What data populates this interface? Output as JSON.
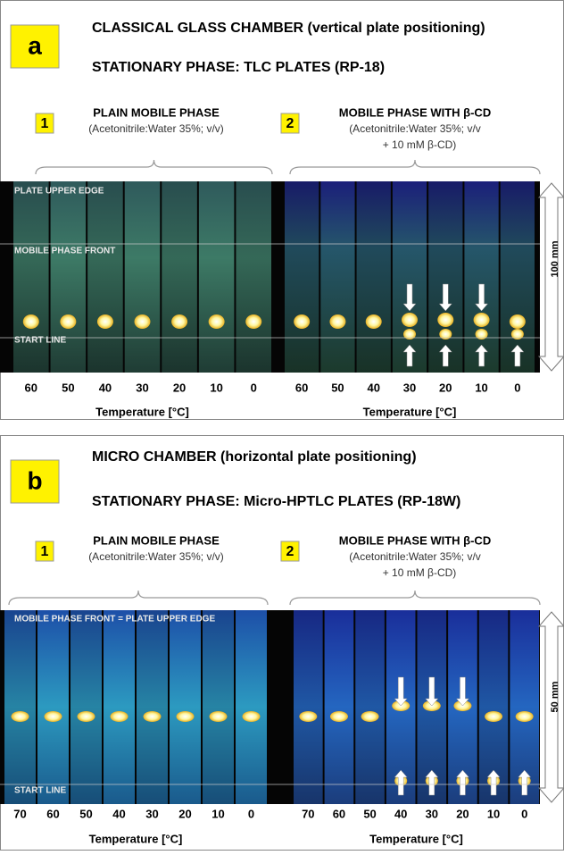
{
  "panels": [
    {
      "label": "a",
      "title": "CLASSICAL GLASS CHAMBER (vertical plate positioning)",
      "subtitle": "STATIONARY PHASE: TLC PLATES (RP-18)",
      "groups": [
        {
          "number": "1",
          "heading": "PLAIN MOBILE PHASE",
          "detail_lines": [
            "(Acetonitrile:Water 35%; v/v)"
          ],
          "temperatures": [
            60,
            50,
            40,
            30,
            20,
            10,
            0
          ],
          "axis_label": "Temperature [°C]"
        },
        {
          "number": "2",
          "heading": "MOBILE PHASE WITH β-CD",
          "detail_lines": [
            "(Acetonitrile:Water 35%; v/v",
            "+ 10 mM β-CD)"
          ],
          "temperatures": [
            60,
            50,
            40,
            30,
            20,
            10,
            0
          ],
          "axis_label": "Temperature [°C]"
        }
      ],
      "plate_labels": [
        "PLATE UPPER EDGE",
        "MOBILE PHASE FRONT",
        "START LINE"
      ],
      "scale": "100 mm"
    },
    {
      "label": "b",
      "title": "MICRO CHAMBER (horizontal plate positioning)",
      "subtitle": "STATIONARY PHASE: Micro-HPTLC PLATES (RP-18W)",
      "groups": [
        {
          "number": "1",
          "heading": "PLAIN MOBILE PHASE",
          "detail_lines": [
            "(Acetonitrile:Water 35%; v/v)"
          ],
          "temperatures": [
            70,
            60,
            50,
            40,
            30,
            20,
            10,
            0
          ],
          "axis_label": "Temperature [°C]"
        },
        {
          "number": "2",
          "heading": "MOBILE PHASE WITH β-CD",
          "detail_lines": [
            "(Acetonitrile:Water 35%; v/v",
            "+ 10 mM β-CD)"
          ],
          "temperatures": [
            70,
            60,
            50,
            40,
            30,
            20,
            10,
            0
          ],
          "axis_label": "Temperature [°C]"
        }
      ],
      "plate_labels": [
        "MOBILE PHASE FRONT = PLATE UPPER EDGE",
        "START LINE"
      ],
      "scale": "50 mm"
    }
  ]
}
